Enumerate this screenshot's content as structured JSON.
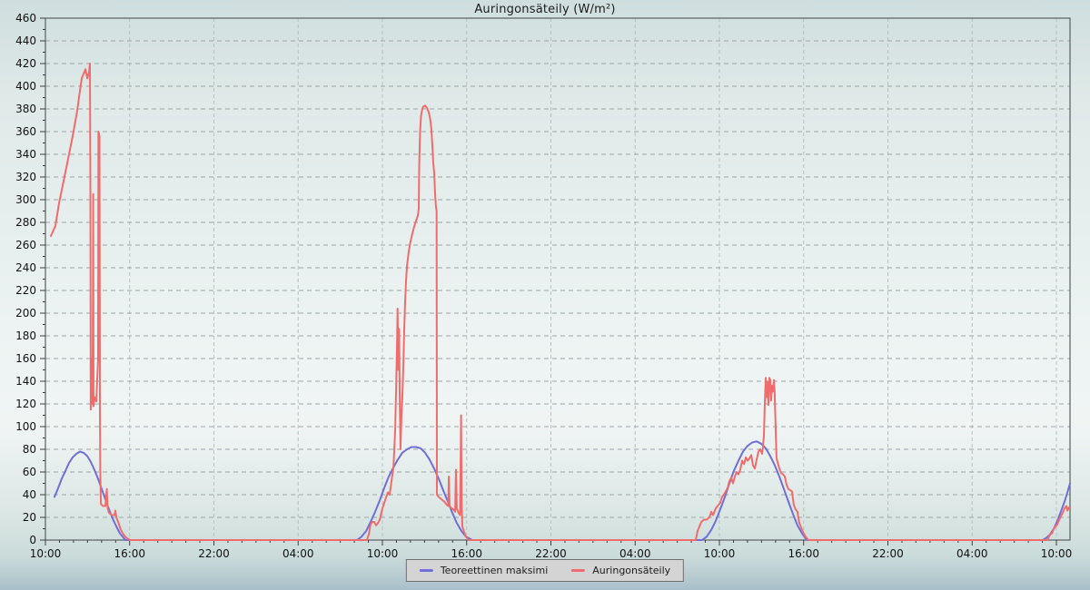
{
  "page": {
    "title": "Auringonsäteily (W/m²)"
  },
  "chart_data": {
    "type": "line",
    "title": "Auringonsäteily (W/m²)",
    "xlabel": "",
    "ylabel": "W/m²",
    "x_unit": "hours since first shown 10:00 (3-day span)",
    "x_range": [
      0,
      72.97
    ],
    "ylim": [
      0,
      460
    ],
    "y_tick_step": 20,
    "y_minor_step": 10,
    "x_major_tick_hours": 6,
    "x_minor_tick_hours": 1,
    "grid": {
      "horizontal": "dashed",
      "vertical": "dashed"
    },
    "legend_position": "bottom-center",
    "x_ticks": [
      {
        "t": 0,
        "label": "10:00"
      },
      {
        "t": 6,
        "label": "16:00"
      },
      {
        "t": 12,
        "label": "22:00"
      },
      {
        "t": 18,
        "label": "04:00"
      },
      {
        "t": 24,
        "label": "10:00"
      },
      {
        "t": 30,
        "label": "16:00"
      },
      {
        "t": 36,
        "label": "22:00"
      },
      {
        "t": 42,
        "label": "04:00"
      },
      {
        "t": 48,
        "label": "10:00"
      },
      {
        "t": 54,
        "label": "16:00"
      },
      {
        "t": 60,
        "label": "22:00"
      },
      {
        "t": 66,
        "label": "04:00"
      },
      {
        "t": 72,
        "label": "10:00"
      }
    ],
    "series": [
      {
        "name": "Teoreettinen maksimi",
        "color": "#6f6fd8",
        "points": [
          [
            0.65,
            38
          ],
          [
            0.91,
            46
          ],
          [
            1.16,
            54
          ],
          [
            1.42,
            61
          ],
          [
            1.68,
            68
          ],
          [
            1.94,
            73
          ],
          [
            2.2,
            76
          ],
          [
            2.46,
            78
          ],
          [
            2.72,
            77
          ],
          [
            2.98,
            74
          ],
          [
            3.23,
            69
          ],
          [
            3.49,
            62
          ],
          [
            3.75,
            54
          ],
          [
            4.01,
            45
          ],
          [
            4.27,
            36
          ],
          [
            4.53,
            27
          ],
          [
            4.79,
            19
          ],
          [
            5.05,
            12
          ],
          [
            5.3,
            6
          ],
          [
            5.5,
            3
          ],
          [
            5.69,
            0
          ],
          [
            22.19,
            0
          ],
          [
            22.51,
            3
          ],
          [
            22.84,
            8
          ],
          [
            23.16,
            16
          ],
          [
            23.48,
            25
          ],
          [
            23.81,
            35
          ],
          [
            24.13,
            46
          ],
          [
            24.45,
            56
          ],
          [
            24.78,
            64
          ],
          [
            25.1,
            71
          ],
          [
            25.42,
            77
          ],
          [
            25.75,
            80
          ],
          [
            26.07,
            82
          ],
          [
            26.39,
            82
          ],
          [
            26.72,
            81
          ],
          [
            27.04,
            77
          ],
          [
            27.36,
            71
          ],
          [
            27.69,
            63
          ],
          [
            28.01,
            54
          ],
          [
            28.33,
            44
          ],
          [
            28.66,
            34
          ],
          [
            28.98,
            24
          ],
          [
            29.3,
            15
          ],
          [
            29.63,
            8
          ],
          [
            29.95,
            3
          ],
          [
            30.4,
            0
          ],
          [
            46.77,
            0
          ],
          [
            47.09,
            3
          ],
          [
            47.42,
            9
          ],
          [
            47.74,
            17
          ],
          [
            48.06,
            27
          ],
          [
            48.39,
            38
          ],
          [
            48.71,
            50
          ],
          [
            49.03,
            61
          ],
          [
            49.36,
            70
          ],
          [
            49.68,
            78
          ],
          [
            50.0,
            83
          ],
          [
            50.33,
            86
          ],
          [
            50.65,
            87
          ],
          [
            50.97,
            85
          ],
          [
            51.3,
            81
          ],
          [
            51.62,
            74
          ],
          [
            51.94,
            66
          ],
          [
            52.27,
            56
          ],
          [
            52.59,
            45
          ],
          [
            52.91,
            34
          ],
          [
            53.24,
            23
          ],
          [
            53.56,
            13
          ],
          [
            53.88,
            6
          ],
          [
            54.21,
            0
          ],
          [
            71.03,
            0
          ],
          [
            71.29,
            2
          ],
          [
            71.55,
            5
          ],
          [
            71.81,
            10
          ],
          [
            72.07,
            17
          ],
          [
            72.32,
            25
          ],
          [
            72.58,
            34
          ],
          [
            72.78,
            42
          ],
          [
            72.97,
            50
          ]
        ]
      },
      {
        "name": "Auringonsäteily",
        "color": "#f06c6c",
        "points": [
          [
            0.39,
            268
          ],
          [
            0.71,
            277
          ],
          [
            0.97,
            297
          ],
          [
            1.29,
            316
          ],
          [
            1.62,
            336
          ],
          [
            1.94,
            356
          ],
          [
            2.26,
            378
          ],
          [
            2.46,
            396
          ],
          [
            2.59,
            407
          ],
          [
            2.72,
            411
          ],
          [
            2.85,
            415
          ],
          [
            2.98,
            407
          ],
          [
            3.11,
            413
          ],
          [
            3.17,
            420
          ],
          [
            3.2,
            310
          ],
          [
            3.23,
            115
          ],
          [
            3.3,
            160
          ],
          [
            3.36,
            120
          ],
          [
            3.4,
            305
          ],
          [
            3.43,
            118
          ],
          [
            3.49,
            126
          ],
          [
            3.62,
            122
          ],
          [
            3.75,
            160
          ],
          [
            3.78,
            360
          ],
          [
            3.85,
            356
          ],
          [
            3.88,
            120
          ],
          [
            3.91,
            60
          ],
          [
            3.95,
            32
          ],
          [
            4.08,
            30
          ],
          [
            4.27,
            30
          ],
          [
            4.37,
            45
          ],
          [
            4.43,
            28
          ],
          [
            4.53,
            24
          ],
          [
            4.72,
            22
          ],
          [
            4.92,
            22
          ],
          [
            4.98,
            26
          ],
          [
            5.05,
            20
          ],
          [
            5.18,
            16
          ],
          [
            5.37,
            9
          ],
          [
            5.56,
            5
          ],
          [
            5.76,
            2
          ],
          [
            6.02,
            0
          ],
          [
            22.9,
            0
          ],
          [
            23.03,
            5
          ],
          [
            23.16,
            14
          ],
          [
            23.29,
            16
          ],
          [
            23.42,
            16
          ],
          [
            23.55,
            13
          ],
          [
            23.68,
            15
          ],
          [
            23.81,
            18
          ],
          [
            24.0,
            28
          ],
          [
            24.19,
            35
          ],
          [
            24.39,
            42
          ],
          [
            24.52,
            40
          ],
          [
            24.65,
            52
          ],
          [
            24.78,
            64
          ],
          [
            24.84,
            78
          ],
          [
            24.91,
            98
          ],
          [
            24.97,
            130
          ],
          [
            25.04,
            172
          ],
          [
            25.08,
            204
          ],
          [
            25.13,
            150
          ],
          [
            25.19,
            186
          ],
          [
            25.23,
            130
          ],
          [
            25.29,
            80
          ],
          [
            25.36,
            110
          ],
          [
            25.42,
            125
          ],
          [
            25.49,
            152
          ],
          [
            25.55,
            185
          ],
          [
            25.62,
            210
          ],
          [
            25.68,
            228
          ],
          [
            25.75,
            242
          ],
          [
            25.88,
            255
          ],
          [
            26.0,
            263
          ],
          [
            26.13,
            270
          ],
          [
            26.26,
            276
          ],
          [
            26.39,
            281
          ],
          [
            26.52,
            286
          ],
          [
            26.59,
            292
          ],
          [
            26.62,
            330
          ],
          [
            26.68,
            358
          ],
          [
            26.75,
            374
          ],
          [
            26.84,
            380
          ],
          [
            26.91,
            382
          ],
          [
            27.04,
            383
          ],
          [
            27.17,
            381
          ],
          [
            27.3,
            377
          ],
          [
            27.36,
            374
          ],
          [
            27.43,
            369
          ],
          [
            27.49,
            362
          ],
          [
            27.56,
            348
          ],
          [
            27.62,
            332
          ],
          [
            27.69,
            324
          ],
          [
            27.75,
            305
          ],
          [
            27.81,
            294
          ],
          [
            27.86,
            290
          ],
          [
            27.88,
            40
          ],
          [
            28.01,
            38
          ],
          [
            28.2,
            36
          ],
          [
            28.4,
            34
          ],
          [
            28.59,
            31
          ],
          [
            28.69,
            30
          ],
          [
            28.73,
            56
          ],
          [
            28.79,
            30
          ],
          [
            28.92,
            28
          ],
          [
            29.05,
            27
          ],
          [
            29.18,
            25
          ],
          [
            29.24,
            62
          ],
          [
            29.3,
            28
          ],
          [
            29.43,
            24
          ],
          [
            29.53,
            22
          ],
          [
            29.6,
            110
          ],
          [
            29.65,
            32
          ],
          [
            29.69,
            12
          ],
          [
            29.82,
            7
          ],
          [
            29.95,
            3
          ],
          [
            30.14,
            0
          ],
          [
            46.32,
            0
          ],
          [
            46.45,
            8
          ],
          [
            46.58,
            12
          ],
          [
            46.71,
            16
          ],
          [
            46.9,
            18
          ],
          [
            47.09,
            18
          ],
          [
            47.29,
            20
          ],
          [
            47.42,
            25
          ],
          [
            47.55,
            22
          ],
          [
            47.74,
            28
          ],
          [
            47.87,
            30
          ],
          [
            48.06,
            33
          ],
          [
            48.19,
            38
          ],
          [
            48.32,
            40
          ],
          [
            48.45,
            43
          ],
          [
            48.58,
            46
          ],
          [
            48.71,
            52
          ],
          [
            48.84,
            55
          ],
          [
            48.97,
            50
          ],
          [
            49.1,
            56
          ],
          [
            49.23,
            60
          ],
          [
            49.36,
            58
          ],
          [
            49.49,
            62
          ],
          [
            49.62,
            70
          ],
          [
            49.75,
            67
          ],
          [
            49.88,
            73
          ],
          [
            50.01,
            70
          ],
          [
            50.14,
            72
          ],
          [
            50.27,
            75
          ],
          [
            50.39,
            66
          ],
          [
            50.52,
            63
          ],
          [
            50.65,
            71
          ],
          [
            50.78,
            78
          ],
          [
            50.91,
            80
          ],
          [
            51.04,
            76
          ],
          [
            51.1,
            82
          ],
          [
            51.17,
            92
          ],
          [
            51.23,
            118
          ],
          [
            51.3,
            143
          ],
          [
            51.36,
            126
          ],
          [
            51.43,
            139
          ],
          [
            51.49,
            119
          ],
          [
            51.56,
            143
          ],
          [
            51.62,
            141
          ],
          [
            51.68,
            123
          ],
          [
            51.75,
            136
          ],
          [
            51.81,
            131
          ],
          [
            51.88,
            141
          ],
          [
            51.94,
            129
          ],
          [
            52.01,
            97
          ],
          [
            52.07,
            72
          ],
          [
            52.14,
            69
          ],
          [
            52.27,
            63
          ],
          [
            52.4,
            59
          ],
          [
            52.53,
            58
          ],
          [
            52.66,
            56
          ],
          [
            52.78,
            49
          ],
          [
            52.91,
            45
          ],
          [
            53.04,
            44
          ],
          [
            53.17,
            43
          ],
          [
            53.3,
            31
          ],
          [
            53.43,
            27
          ],
          [
            53.56,
            25
          ],
          [
            53.69,
            15
          ],
          [
            53.82,
            11
          ],
          [
            53.95,
            7
          ],
          [
            54.14,
            3
          ],
          [
            54.34,
            0
          ],
          [
            71.36,
            0
          ],
          [
            71.55,
            5
          ],
          [
            71.68,
            6
          ],
          [
            71.81,
            10
          ],
          [
            71.94,
            12
          ],
          [
            72.07,
            14
          ],
          [
            72.2,
            18
          ],
          [
            72.32,
            21
          ],
          [
            72.45,
            24
          ],
          [
            72.58,
            28
          ],
          [
            72.71,
            30
          ],
          [
            72.78,
            26
          ],
          [
            72.91,
            29
          ]
        ]
      }
    ]
  },
  "legend": {
    "items": [
      {
        "label": "Teoreettinen maksimi",
        "color": "#6f6fd8"
      },
      {
        "label": "Auringonsäteily",
        "color": "#f06c6c"
      }
    ]
  },
  "colors": {
    "frame": "#586060",
    "grid_horizontal": "#9ca5a5",
    "grid_vertical": "#b7c2c2",
    "legend_background": "#d4d4d4",
    "text": "#1c1c1c"
  }
}
